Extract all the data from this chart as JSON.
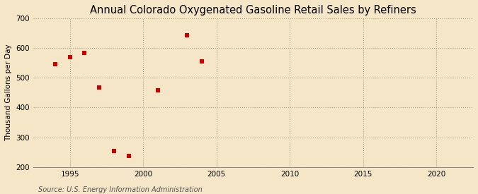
{
  "title": "Annual Colorado Oxygenated Gasoline Retail Sales by Refiners",
  "ylabel": "Thousand Gallons per Day",
  "source": "Source: U.S. Energy Information Administration",
  "background_color": "#f5e6c8",
  "plot_bg_color": "#f5e6c8",
  "x_values": [
    1994,
    1995,
    1996,
    1997,
    1998,
    1999,
    2001,
    2003,
    2004
  ],
  "y_values": [
    545,
    570,
    583,
    468,
    255,
    238,
    457,
    643,
    555
  ],
  "marker_color": "#cc0000",
  "marker_size": 4,
  "xlim": [
    1992.5,
    2022.5
  ],
  "ylim": [
    200,
    700
  ],
  "xticks": [
    1995,
    2000,
    2005,
    2010,
    2015,
    2020
  ],
  "yticks": [
    200,
    300,
    400,
    500,
    600,
    700
  ],
  "grid_color": "#b0a080",
  "title_fontsize": 10.5,
  "label_fontsize": 7.5,
  "tick_fontsize": 7.5,
  "source_fontsize": 7
}
